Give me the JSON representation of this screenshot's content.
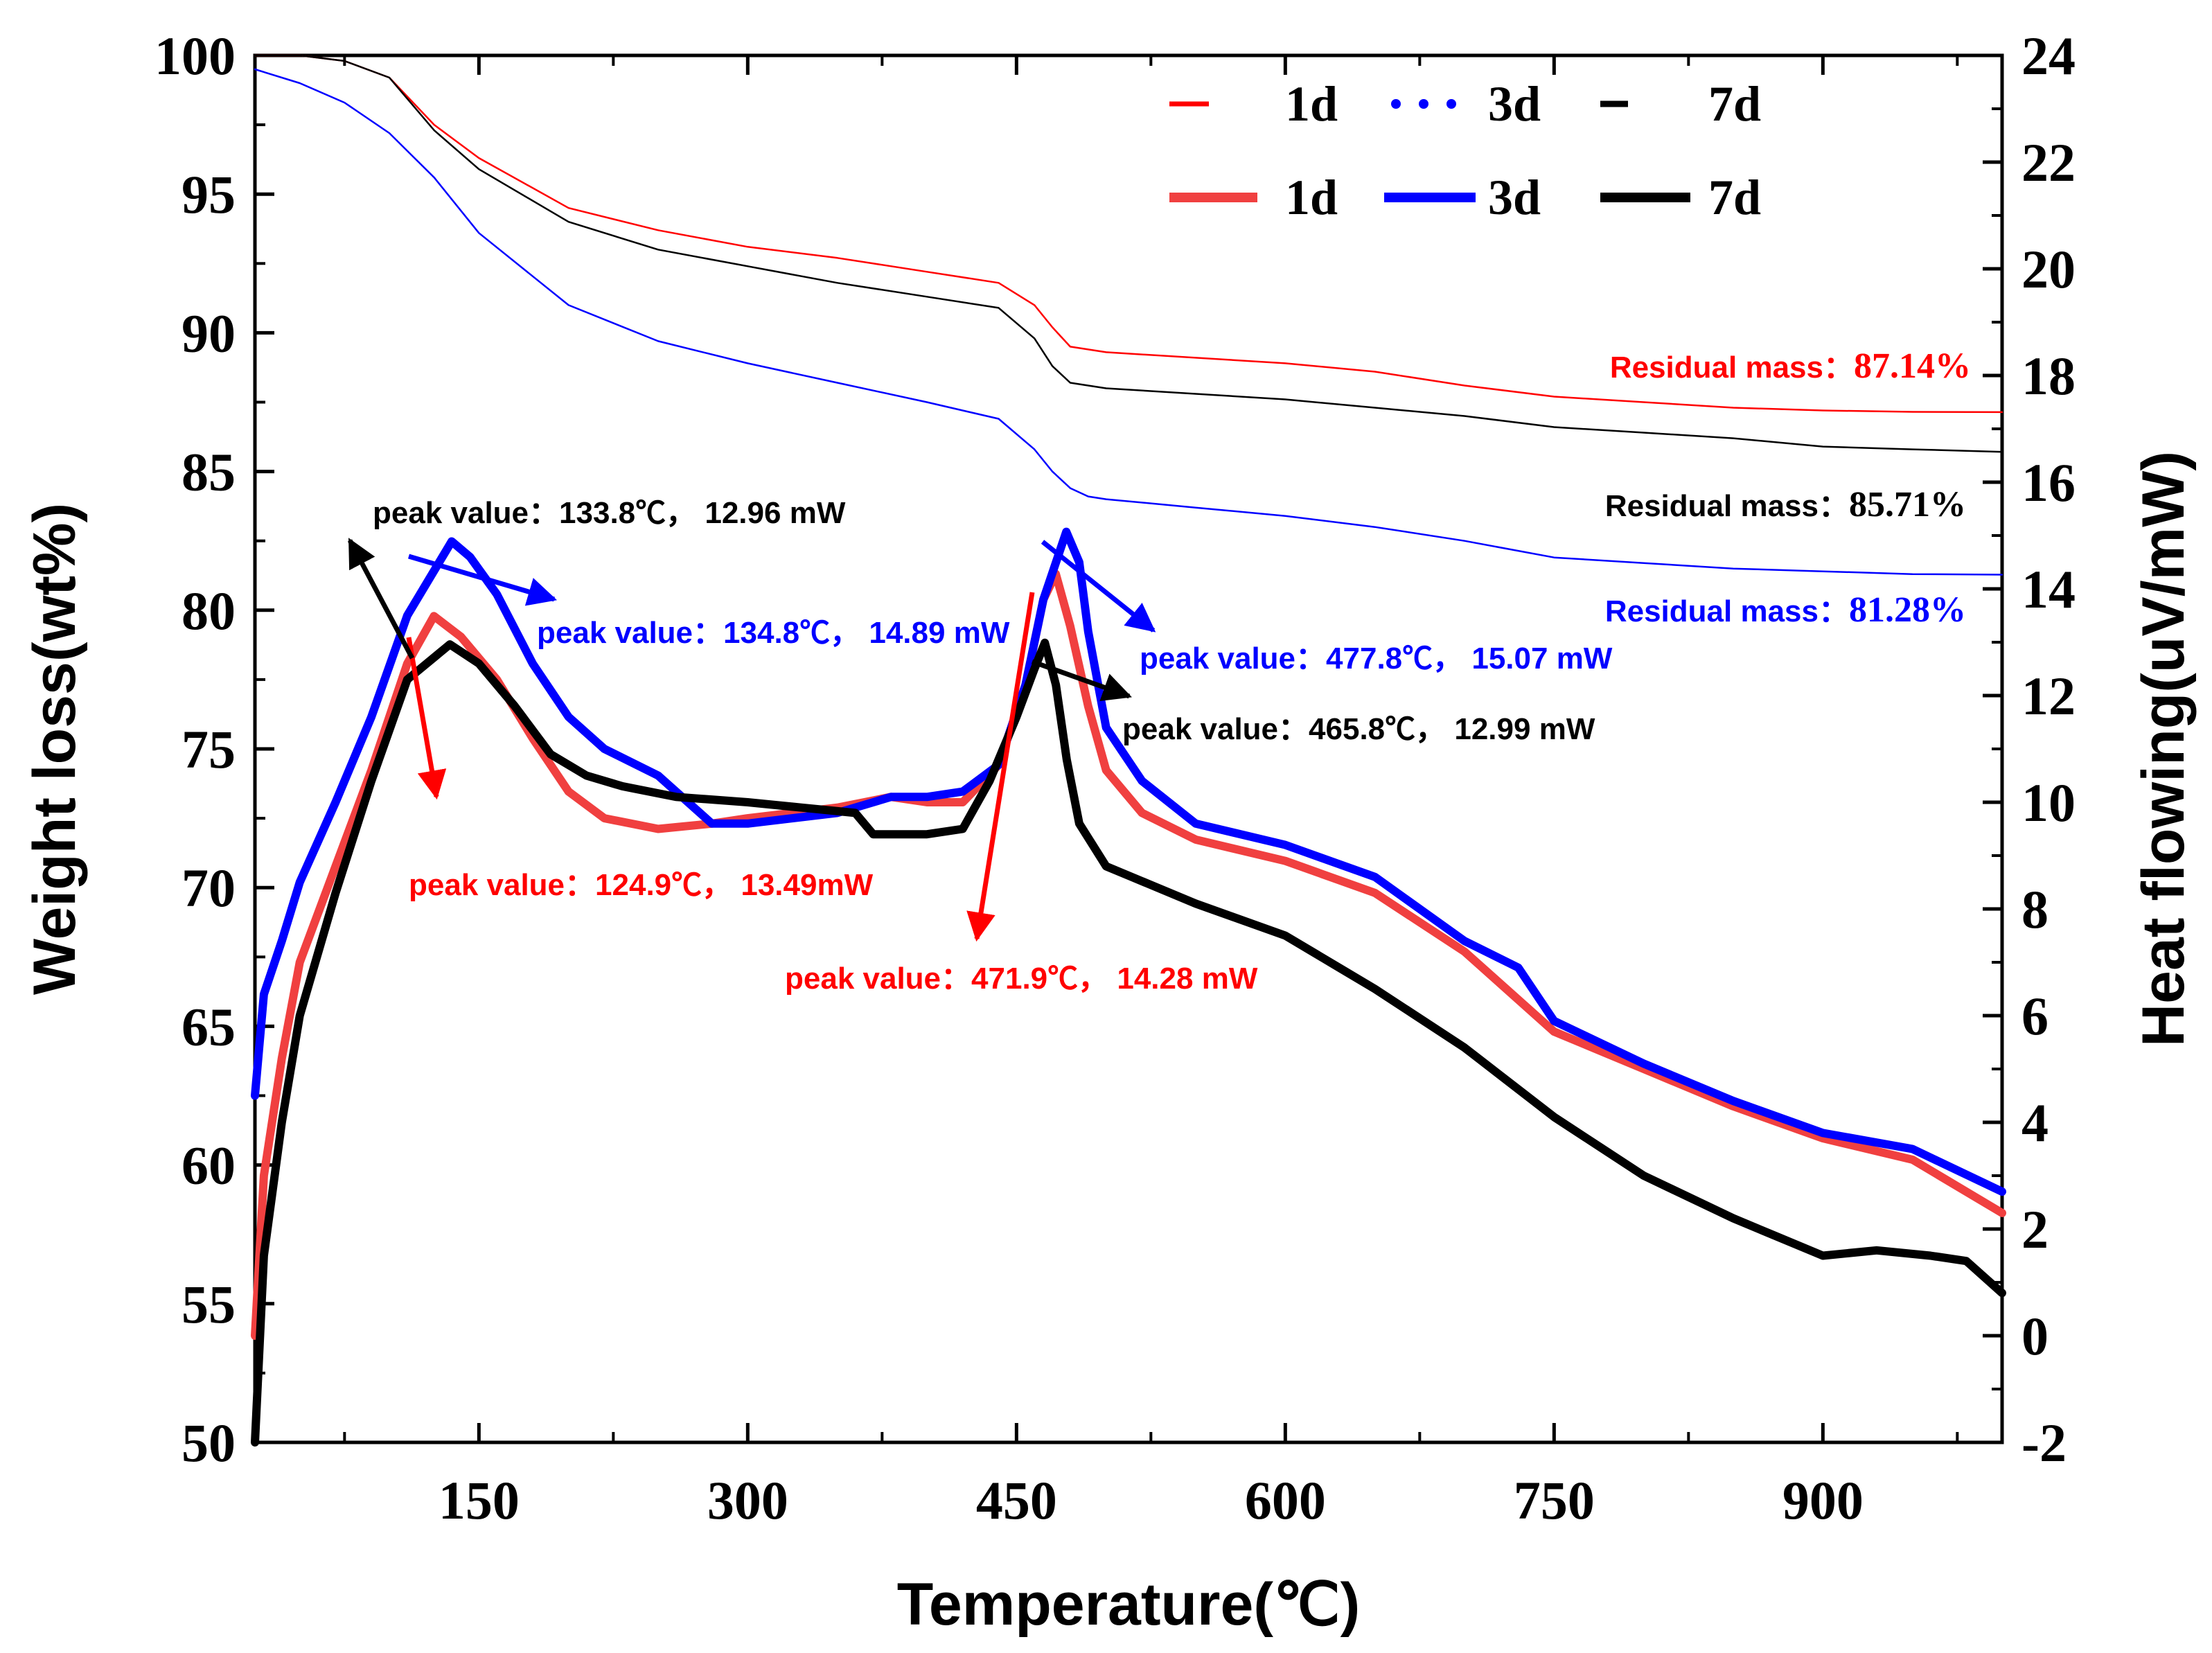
{
  "chart_data": {
    "type": "line",
    "x_axis": {
      "label": "Temperature(℃)",
      "range": [
        25,
        1000
      ],
      "ticks": [
        150,
        300,
        450,
        600,
        750,
        900
      ],
      "tick_labels": [
        "150",
        "300",
        "450",
        "600",
        "750",
        "900"
      ]
    },
    "y_left": {
      "label": "Weight loss(wt%)",
      "range": [
        50,
        100
      ],
      "ticks": [
        50,
        55,
        60,
        65,
        70,
        75,
        80,
        85,
        90,
        95,
        100
      ],
      "tick_labels": [
        "50",
        "55",
        "60",
        "65",
        "70",
        "75",
        "80",
        "85",
        "90",
        "95",
        "100"
      ]
    },
    "y_right": {
      "label": "Heat flowing(uV/mW)",
      "range": [
        -2,
        24
      ],
      "ticks": [
        -2,
        0,
        2,
        4,
        6,
        8,
        10,
        12,
        14,
        16,
        18,
        20,
        22,
        24
      ],
      "tick_labels": [
        "-2",
        "0",
        "2",
        "4",
        "6",
        "8",
        "10",
        "12",
        "14",
        "16",
        "18",
        "20",
        "22",
        "24"
      ]
    },
    "legend": {
      "placement": "top-right",
      "entries": [
        {
          "label": "1d",
          "style": "dashed",
          "color": "#ff0000"
        },
        {
          "label": "3d",
          "style": "dotted",
          "color": "#0000ff"
        },
        {
          "label": "7d",
          "style": "dashed",
          "color": "#000000"
        },
        {
          "label": "1d",
          "style": "solid",
          "color": "#f04040"
        },
        {
          "label": "3d",
          "style": "solid",
          "color": "#0000ff"
        },
        {
          "label": "7d",
          "style": "solid",
          "color": "#000000"
        }
      ]
    },
    "series": [
      {
        "name": "1d",
        "kind": "TG",
        "axis": "left",
        "color": "#ff0000",
        "x": [
          25,
          50,
          75,
          100,
          125,
          150,
          200,
          250,
          300,
          350,
          400,
          440,
          460,
          470,
          480,
          500,
          550,
          600,
          650,
          700,
          750,
          800,
          850,
          900,
          950,
          1000
        ],
        "y": [
          100,
          100,
          99.8,
          99.2,
          97.5,
          96.3,
          94.5,
          93.7,
          93.1,
          92.7,
          92.2,
          91.8,
          91,
          90.2,
          89.5,
          89.3,
          89.1,
          88.9,
          88.6,
          88.1,
          87.7,
          87.5,
          87.3,
          87.2,
          87.15,
          87.14
        ]
      },
      {
        "name": "3d",
        "kind": "TG",
        "axis": "left",
        "color": "#0000ff",
        "x": [
          25,
          50,
          75,
          100,
          125,
          150,
          200,
          250,
          300,
          350,
          400,
          440,
          460,
          470,
          480,
          490,
          500,
          550,
          600,
          650,
          700,
          750,
          800,
          850,
          900,
          950,
          1000
        ],
        "y": [
          99.5,
          99,
          98.3,
          97.2,
          95.6,
          93.6,
          91,
          89.7,
          88.9,
          88.2,
          87.5,
          86.9,
          85.8,
          85,
          84.4,
          84.1,
          84,
          83.7,
          83.4,
          83,
          82.5,
          81.9,
          81.7,
          81.5,
          81.4,
          81.3,
          81.28
        ]
      },
      {
        "name": "7d",
        "kind": "TG",
        "axis": "left",
        "color": "#000000",
        "x": [
          25,
          50,
          75,
          100,
          125,
          150,
          200,
          250,
          300,
          350,
          400,
          440,
          460,
          470,
          480,
          500,
          550,
          600,
          650,
          700,
          750,
          800,
          850,
          900,
          950,
          1000
        ],
        "y": [
          100,
          100,
          99.8,
          99.2,
          97.3,
          95.9,
          94,
          93,
          92.4,
          91.8,
          91.3,
          90.9,
          89.8,
          88.8,
          88.2,
          88,
          87.8,
          87.6,
          87.3,
          87,
          86.6,
          86.4,
          86.2,
          85.9,
          85.8,
          85.71
        ]
      },
      {
        "name": "1d",
        "kind": "DSC",
        "axis": "right",
        "color": "#f04040",
        "x": [
          25,
          30,
          40,
          50,
          70,
          90,
          110,
          124.9,
          140,
          160,
          180,
          200,
          220,
          250,
          280,
          300,
          350,
          380,
          400,
          420,
          440,
          455,
          465,
          471.9,
          480,
          490,
          500,
          520,
          550,
          600,
          650,
          700,
          750,
          800,
          850,
          900,
          950,
          1000
        ],
        "y": [
          0,
          3,
          5.2,
          7,
          8.8,
          10.6,
          12.6,
          13.49,
          13.1,
          12.3,
          11.2,
          10.2,
          9.7,
          9.5,
          9.6,
          9.7,
          9.9,
          10.1,
          10.0,
          10.0,
          10.7,
          12.2,
          13.8,
          14.28,
          13.3,
          11.8,
          10.6,
          9.8,
          9.3,
          8.9,
          8.3,
          7.2,
          5.7,
          5.0,
          4.3,
          3.7,
          3.3,
          2.3
        ]
      },
      {
        "name": "3d",
        "kind": "DSC",
        "axis": "right",
        "color": "#0000ff",
        "x": [
          25,
          30,
          40,
          50,
          70,
          90,
          110,
          134.8,
          145,
          160,
          180,
          200,
          220,
          250,
          280,
          300,
          350,
          380,
          400,
          420,
          440,
          455,
          465,
          477.8,
          485,
          490,
          500,
          520,
          550,
          600,
          650,
          700,
          730,
          750,
          800,
          850,
          900,
          950,
          1000
        ],
        "y": [
          4.5,
          6.4,
          7.4,
          8.5,
          10.0,
          11.6,
          13.5,
          14.89,
          14.6,
          13.9,
          12.6,
          11.6,
          11.0,
          10.5,
          9.6,
          9.6,
          9.8,
          10.1,
          10.1,
          10.2,
          10.7,
          12.2,
          13.8,
          15.07,
          14.5,
          13.2,
          11.4,
          10.4,
          9.6,
          9.2,
          8.6,
          7.4,
          6.9,
          5.9,
          5.1,
          4.4,
          3.8,
          3.5,
          2.7
        ]
      },
      {
        "name": "7d",
        "kind": "DSC",
        "axis": "right",
        "color": "#000000",
        "x": [
          25,
          30,
          40,
          50,
          70,
          90,
          110,
          133.8,
          150,
          170,
          190,
          210,
          230,
          260,
          300,
          330,
          360,
          370,
          400,
          420,
          435,
          450,
          460,
          465.8,
          472,
          478,
          485,
          500,
          550,
          600,
          650,
          700,
          750,
          800,
          850,
          900,
          930,
          960,
          980,
          1000
        ],
        "y": [
          -2,
          1.5,
          4.0,
          6.0,
          8.3,
          10.4,
          12.3,
          12.96,
          12.6,
          11.8,
          10.9,
          10.5,
          10.3,
          10.1,
          10.0,
          9.9,
          9.8,
          9.4,
          9.4,
          9.5,
          10.4,
          11.6,
          12.5,
          12.99,
          12.2,
          10.8,
          9.6,
          8.8,
          8.1,
          7.5,
          6.5,
          5.4,
          4.1,
          3.0,
          2.2,
          1.5,
          1.6,
          1.5,
          1.4,
          0.8
        ]
      }
    ],
    "annotations": [
      {
        "label": "peak value：",
        "value": "124.9℃， 13.49mW",
        "color": "#ff0000",
        "x": 124.9,
        "y": 13.49
      },
      {
        "label": "peak value：",
        "value": "134.8℃， 14.89 mW",
        "color": "#0000ff",
        "x": 134.8,
        "y": 14.89
      },
      {
        "label": "peak value：",
        "value": "133.8℃， 12.96 mW",
        "color": "#000000",
        "x": 133.8,
        "y": 12.96
      },
      {
        "label": "peak value：",
        "value": "471.9℃， 14.28 mW",
        "color": "#ff0000",
        "x": 471.9,
        "y": 14.28
      },
      {
        "label": "peak value：",
        "value": "477.8℃， 15.07 mW",
        "color": "#0000ff",
        "x": 477.8,
        "y": 15.07
      },
      {
        "label": "peak value：",
        "value": "465.8℃， 12.99 mW",
        "color": "#000000",
        "x": 465.8,
        "y": 12.99
      },
      {
        "label": "Residual mass：",
        "value": "87.14%",
        "color": "#ff0000"
      },
      {
        "label": "Residual mass：",
        "value": "85.71%",
        "color": "#000000"
      },
      {
        "label": "Residual mass：",
        "value": "81.28%",
        "color": "#0000ff"
      }
    ]
  }
}
